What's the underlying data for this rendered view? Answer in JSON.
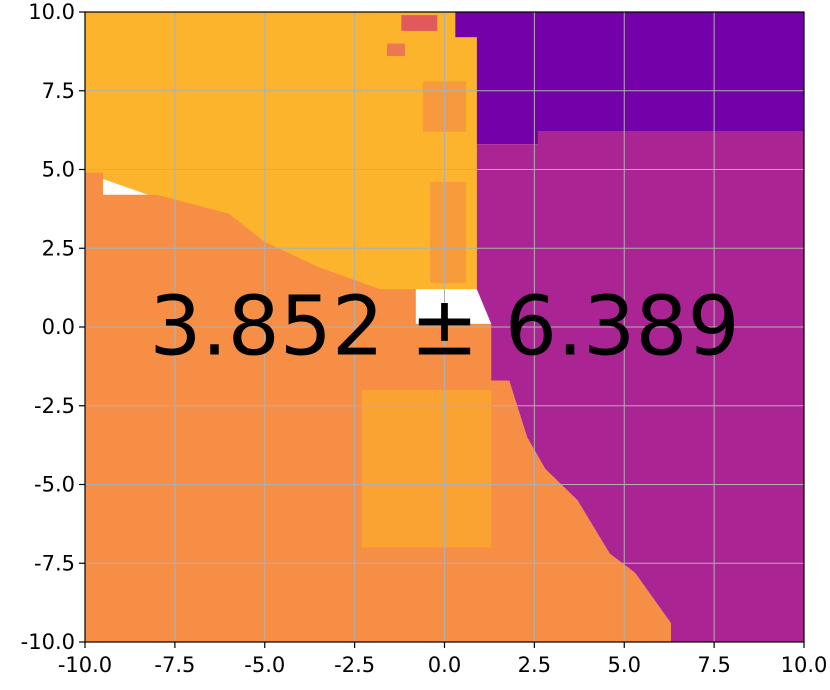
{
  "chart_data": {
    "type": "heatmap",
    "title": "",
    "xlabel": "",
    "ylabel": "",
    "xlim": [
      -10.0,
      10.0
    ],
    "ylim": [
      -10.0,
      10.0
    ],
    "x_ticks": [
      -10.0,
      -7.5,
      -5.0,
      -2.5,
      0.0,
      2.5,
      5.0,
      7.5,
      10.0
    ],
    "y_ticks": [
      -10.0,
      -7.5,
      -5.0,
      -2.5,
      0.0,
      2.5,
      5.0,
      7.5,
      10.0
    ],
    "x_tick_labels": [
      "-10.0",
      "-7.5",
      "-5.0",
      "-2.5",
      "0.0",
      "2.5",
      "5.0",
      "7.5",
      "10.0"
    ],
    "y_tick_labels": [
      "-10.0",
      "-7.5",
      "-5.0",
      "-2.5",
      "0.0",
      "2.5",
      "5.0",
      "7.5",
      "10.0"
    ],
    "grid": true,
    "colormap": "plasma",
    "annotation": "3.852 ± 6.389",
    "regions": [
      {
        "name": "upper-left",
        "color": "#fbb42c",
        "polygon": [
          [
            -10,
            10
          ],
          [
            0.3,
            10
          ],
          [
            0.3,
            9.2
          ],
          [
            0.9,
            9.2
          ],
          [
            0.9,
            1.2
          ],
          [
            -0.8,
            1.2
          ],
          [
            -0.8,
            0.1
          ],
          [
            1.5,
            0.1
          ],
          [
            1.5,
            -2.6
          ],
          [
            -2.5,
            -1.4
          ],
          [
            -4,
            -1
          ],
          [
            -5.5,
            2.7
          ],
          [
            -8,
            4.1
          ],
          [
            -10,
            4.9
          ]
        ]
      },
      {
        "name": "lower-left",
        "color": "#f68f45",
        "polygon": [
          [
            -10,
            4.9
          ],
          [
            -9.5,
            4.9
          ],
          [
            -9.5,
            4.2
          ],
          [
            -8,
            4.2
          ],
          [
            -6,
            3.6
          ],
          [
            -5,
            2.7
          ],
          [
            -3.5,
            1.9
          ],
          [
            -1.8,
            1.2
          ],
          [
            -0.8,
            1.2
          ],
          [
            -0.8,
            0.1
          ],
          [
            1.3,
            0.1
          ],
          [
            1.3,
            -1.7
          ],
          [
            1.8,
            -1.7
          ],
          [
            2.3,
            -3.5
          ],
          [
            2.8,
            -4.5
          ],
          [
            3.7,
            -5.5
          ],
          [
            4.6,
            -7.2
          ],
          [
            5.3,
            -7.8
          ],
          [
            6.3,
            -9.4
          ],
          [
            6.3,
            -10
          ],
          [
            -10,
            -10
          ]
        ]
      },
      {
        "name": "upper-right",
        "color": "#7300a8",
        "polygon": [
          [
            0.3,
            10
          ],
          [
            10,
            10
          ],
          [
            10,
            6.2
          ],
          [
            2.6,
            6.2
          ],
          [
            2.6,
            5.8
          ],
          [
            0.9,
            5.8
          ],
          [
            0.9,
            9.2
          ],
          [
            0.3,
            9.2
          ]
        ]
      },
      {
        "name": "lower-right",
        "color": "#ab2494",
        "polygon": [
          [
            0.9,
            5.8
          ],
          [
            2.6,
            5.8
          ],
          [
            2.6,
            6.2
          ],
          [
            10,
            6.2
          ],
          [
            10,
            -10
          ],
          [
            6.3,
            -10
          ],
          [
            6.3,
            -9.4
          ],
          [
            5.3,
            -7.8
          ],
          [
            4.6,
            -7.2
          ],
          [
            3.7,
            -5.5
          ],
          [
            2.8,
            -4.5
          ],
          [
            2.3,
            -3.5
          ],
          [
            1.8,
            -1.7
          ],
          [
            1.3,
            -1.7
          ],
          [
            1.3,
            0.1
          ],
          [
            0.9,
            1.2
          ]
        ]
      }
    ],
    "patches": [
      {
        "color": "#e2595c",
        "x": [
          -1.2,
          -0.2
        ],
        "y": [
          9.4,
          9.9
        ]
      },
      {
        "color": "#ec7853",
        "x": [
          -1.6,
          -1.1
        ],
        "y": [
          8.6,
          9.0
        ]
      },
      {
        "color": "#f79a3d",
        "x": [
          -0.6,
          0.6
        ],
        "y": [
          6.2,
          7.8
        ]
      },
      {
        "color": "#f89b3b",
        "x": [
          -0.4,
          0.6
        ],
        "y": [
          1.4,
          4.6
        ]
      },
      {
        "color": "#fba332",
        "x": [
          -2.3,
          1.3
        ],
        "y": [
          -7.0,
          -2.0
        ]
      }
    ]
  }
}
